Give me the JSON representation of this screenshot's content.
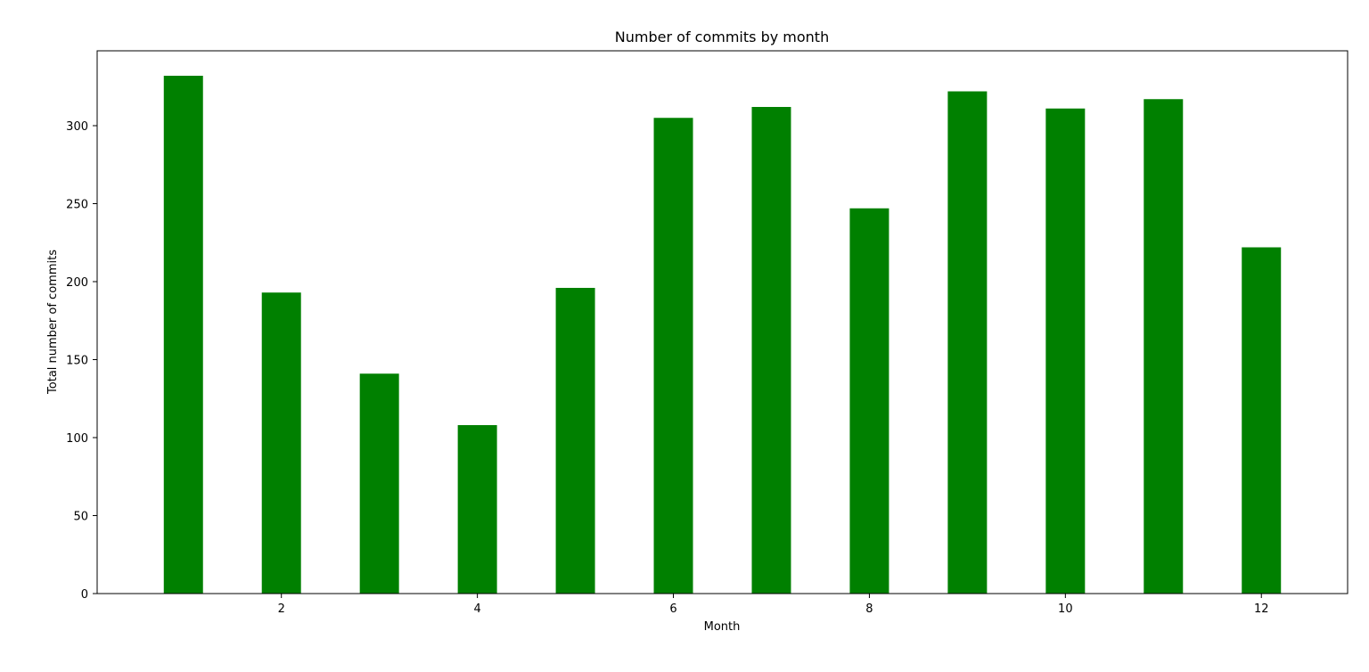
{
  "chart_data": {
    "type": "bar",
    "title": "Number of commits by month",
    "xlabel": "Month",
    "ylabel": "Total number of commits",
    "x": [
      1,
      2,
      3,
      4,
      5,
      6,
      7,
      8,
      9,
      10,
      11,
      12
    ],
    "values": [
      332,
      193,
      141,
      108,
      196,
      305,
      312,
      247,
      322,
      311,
      317,
      222
    ],
    "bar_width": 0.4,
    "xlim": [
      0.12,
      12.88
    ],
    "ylim": [
      0,
      348
    ],
    "xticks": [
      2,
      4,
      6,
      8,
      10,
      12
    ],
    "yticks": [
      0,
      50,
      100,
      150,
      200,
      250,
      300
    ],
    "bar_color": "#008000",
    "grid": false
  }
}
